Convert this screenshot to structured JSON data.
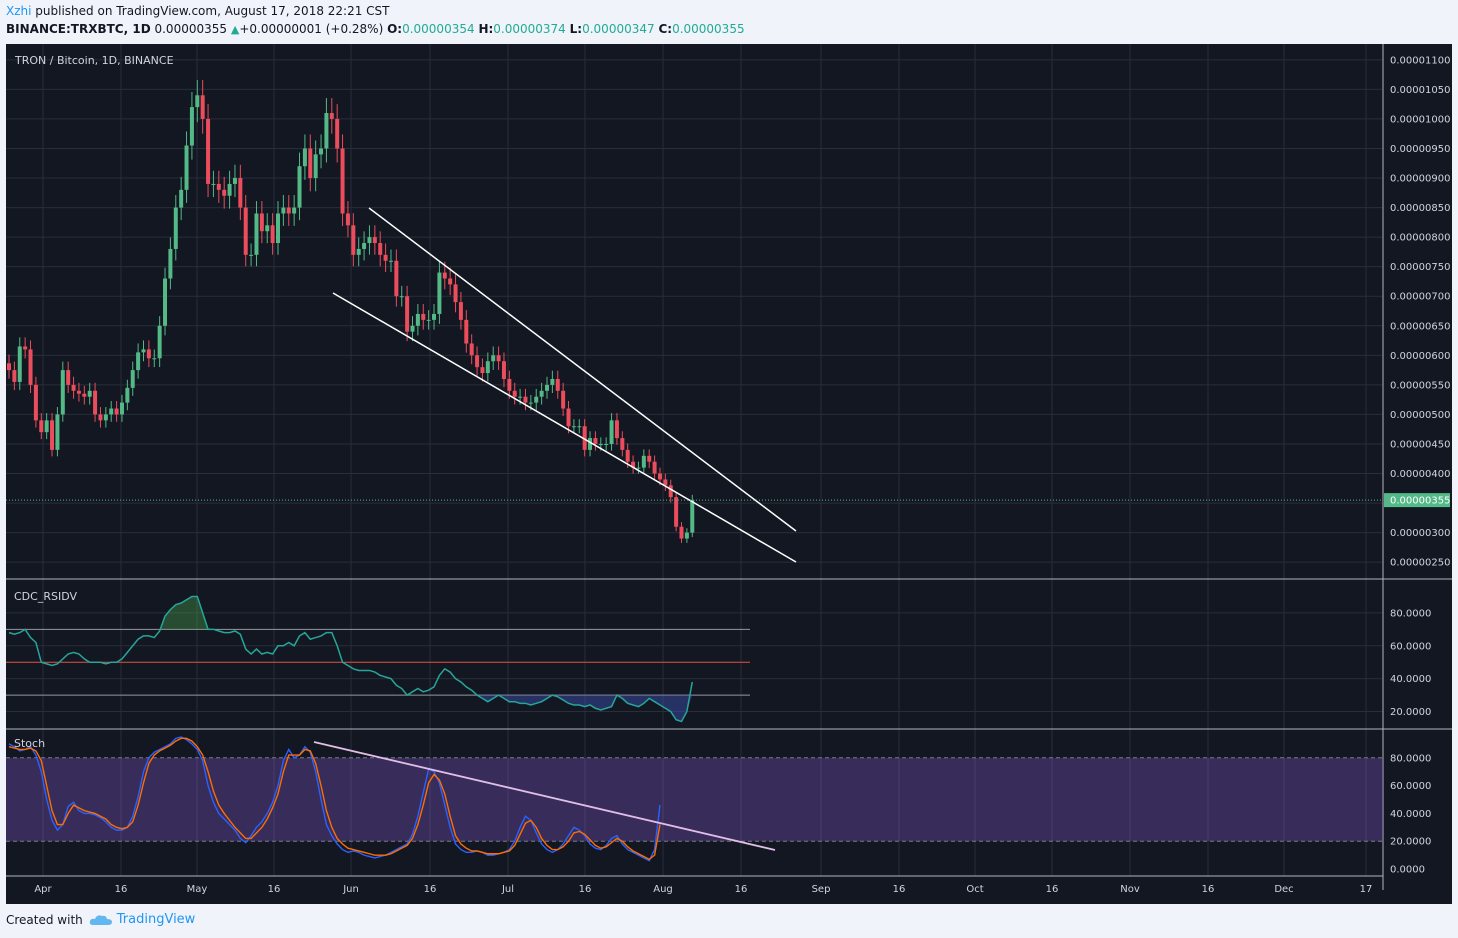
{
  "header": {
    "author": "Xzhi",
    "published_text": "published on TradingView.com, August 17, 2018 22:21 CST",
    "symbol_line": "BINANCE:TRXBTC, 1D",
    "last_price": "0.00000355",
    "change": "+0.00000001 (+0.28%)",
    "o_label": "O:",
    "o_value": "0.00000354",
    "h_label": "H:",
    "h_value": "0.00000374",
    "l_label": "L:",
    "l_value": "0.00000347",
    "c_label": "C:",
    "c_value": "0.00000355"
  },
  "footer": {
    "created_with": "Created with",
    "brand": "TradingView"
  },
  "colors": {
    "background": "#131722",
    "up": "#53b987",
    "down": "#eb4d5c",
    "grid": "#2a2e39",
    "channel": "#ffffff"
  },
  "chart_data": [
    {
      "type": "candlestick",
      "title": "TRON / Bitcoin, 1D, BINANCE",
      "last_price_label": "0.00000355",
      "y_ticks": [
        "0.00000250",
        "0.00000300",
        "0.00000350",
        "0.00000400",
        "0.00000450",
        "0.00000500",
        "0.00000550",
        "0.00000600",
        "0.00000650",
        "0.00000700",
        "0.00000750",
        "0.00000800",
        "0.00000850",
        "0.00000900",
        "0.00000950",
        "0.00001000",
        "0.00001050",
        "0.00001100"
      ],
      "ylim": [
        2.3e-06,
        1.12e-05
      ],
      "x_ticks": [
        "Apr",
        "16",
        "May",
        "16",
        "Jun",
        "16",
        "Jul",
        "16",
        "Aug",
        "16",
        "Sep",
        "16",
        "Oct",
        "16",
        "Nov",
        "16",
        "Dec",
        "17"
      ],
      "closes": [
        5.75e-06,
        5.55e-06,
        6.15e-06,
        6.1e-06,
        5.5e-06,
        4.9e-06,
        4.7e-06,
        4.9e-06,
        4.4e-06,
        5e-06,
        5.75e-06,
        5.5e-06,
        5.4e-06,
        5.35e-06,
        5.3e-06,
        5.4e-06,
        5e-06,
        4.9e-06,
        5e-06,
        5.1e-06,
        5e-06,
        5.2e-06,
        5.45e-06,
        5.75e-06,
        6.05e-06,
        6.1e-06,
        5.95e-06,
        5.95e-06,
        6.5e-06,
        7.3e-06,
        7.8e-06,
        8.5e-06,
        8.8e-06,
        9.55e-06,
        1.02e-05,
        1.04e-05,
        1e-05,
        8.9e-06,
        8.9e-06,
        8.8e-06,
        8.7e-06,
        8.9e-06,
        9e-06,
        8.5e-06,
        7.7e-06,
        7.7e-06,
        8.4e-06,
        8.1e-06,
        8.2e-06,
        7.9e-06,
        8.4e-06,
        8.5e-06,
        8.4e-06,
        8.5e-06,
        9.2e-06,
        9.5e-06,
        9e-06,
        9.4e-06,
        9.5e-06,
        1.01e-05,
        1e-05,
        9.5e-06,
        8.4e-06,
        8.2e-06,
        7.7e-06,
        7.8e-06,
        7.9e-06,
        8e-06,
        7.9e-06,
        7.7e-06,
        7.6e-06,
        7.6e-06,
        7e-06,
        7e-06,
        6.4e-06,
        6.5e-06,
        6.7e-06,
        6.6e-06,
        6.6e-06,
        6.7e-06,
        7.4e-06,
        7.3e-06,
        7.2e-06,
        6.9e-06,
        6.6e-06,
        6.2e-06,
        6e-06,
        5.8e-06,
        5.7e-06,
        5.9e-06,
        6e-06,
        5.9e-06,
        5.6e-06,
        5.4e-06,
        5.3e-06,
        5.3e-06,
        5.2e-06,
        5.2e-06,
        5.3e-06,
        5.4e-06,
        5.5e-06,
        5.6e-06,
        5.4e-06,
        5.1e-06,
        4.8e-06,
        4.8e-06,
        4.8e-06,
        4.4e-06,
        4.6e-06,
        4.5e-06,
        4.5e-06,
        4.5e-06,
        4.9e-06,
        4.6e-06,
        4.4e-06,
        4.2e-06,
        4.1e-06,
        4.1e-06,
        4.3e-06,
        4.2e-06,
        4e-06,
        3.9e-06,
        3.8e-06,
        3.6e-06,
        3.1e-06,
        2.9e-06,
        3e-06,
        3.55e-06
      ]
    },
    {
      "type": "line",
      "title": "CDC_RSIDV",
      "y_ticks": [
        "20.0000",
        "40.0000",
        "60.0000",
        "80.0000"
      ],
      "ylim": [
        10,
        100
      ],
      "reference_lines": [
        70,
        50,
        30
      ],
      "values": [
        68,
        67,
        68,
        70,
        65,
        62,
        50,
        49,
        48,
        49,
        52,
        55,
        56,
        55,
        52,
        50,
        50,
        50,
        49,
        50,
        50,
        52,
        56,
        60,
        64,
        66,
        66,
        65,
        69,
        78,
        82,
        85,
        86,
        88,
        90,
        90,
        80,
        70,
        70,
        69,
        68,
        68,
        69,
        67,
        58,
        55,
        58,
        55,
        56,
        55,
        60,
        60,
        62,
        60,
        66,
        68,
        64,
        65,
        66,
        68,
        68,
        60,
        50,
        48,
        46,
        45,
        45,
        45,
        44,
        42,
        41,
        40,
        36,
        34,
        30,
        32,
        34,
        32,
        33,
        35,
        42,
        46,
        44,
        40,
        38,
        35,
        33,
        30,
        28,
        26,
        28,
        30,
        28,
        26,
        26,
        25,
        25,
        24,
        25,
        26,
        28,
        30,
        29,
        27,
        25,
        24,
        24,
        23,
        24,
        22,
        21,
        22,
        23,
        30,
        28,
        25,
        24,
        23,
        25,
        28,
        26,
        24,
        22,
        20,
        15,
        14,
        20,
        38
      ]
    },
    {
      "type": "line",
      "title": "Stoch",
      "y_ticks": [
        "0.0000",
        "20.0000",
        "40.0000",
        "60.0000",
        "80.0000"
      ],
      "ylim": [
        -5,
        100
      ],
      "band": [
        20,
        80
      ],
      "series": [
        {
          "color": "#2962ff",
          "values": [
            90,
            88,
            85,
            86,
            88,
            82,
            70,
            50,
            35,
            28,
            32,
            45,
            48,
            42,
            40,
            40,
            39,
            37,
            34,
            30,
            28,
            28,
            30,
            38,
            52,
            70,
            80,
            84,
            86,
            88,
            90,
            94,
            95,
            93,
            90,
            86,
            78,
            60,
            48,
            40,
            36,
            32,
            28,
            22,
            19,
            24,
            30,
            34,
            40,
            48,
            60,
            78,
            86,
            80,
            82,
            88,
            84,
            70,
            50,
            32,
            24,
            18,
            14,
            12,
            13,
            12,
            10,
            9,
            8,
            9,
            10,
            12,
            14,
            16,
            18,
            25,
            38,
            55,
            72,
            70,
            62,
            46,
            30,
            18,
            14,
            12,
            12,
            13,
            12,
            10,
            10,
            11,
            12,
            14,
            20,
            30,
            38,
            35,
            26,
            18,
            14,
            12,
            14,
            18,
            24,
            30,
            28,
            24,
            18,
            15,
            14,
            17,
            22,
            24,
            18,
            14,
            12,
            10,
            8,
            6,
            14,
            46
          ]
        },
        {
          "color": "#ff6d00",
          "values": [
            88,
            87,
            86,
            86,
            87,
            85,
            78,
            60,
            42,
            32,
            32,
            40,
            46,
            44,
            42,
            41,
            40,
            38,
            36,
            32,
            30,
            29,
            30,
            34,
            46,
            62,
            76,
            82,
            85,
            87,
            89,
            92,
            94,
            94,
            92,
            88,
            82,
            70,
            56,
            46,
            40,
            35,
            30,
            26,
            22,
            22,
            26,
            30,
            36,
            44,
            54,
            70,
            82,
            82,
            82,
            86,
            85,
            76,
            60,
            42,
            30,
            22,
            18,
            15,
            14,
            13,
            12,
            11,
            10,
            10,
            10,
            11,
            13,
            15,
            17,
            22,
            32,
            46,
            62,
            68,
            64,
            54,
            38,
            24,
            18,
            15,
            13,
            13,
            12,
            11,
            11,
            11,
            12,
            13,
            17,
            25,
            33,
            35,
            30,
            22,
            17,
            14,
            14,
            16,
            20,
            26,
            27,
            25,
            21,
            17,
            15,
            16,
            19,
            22,
            20,
            16,
            13,
            11,
            9,
            7,
            10,
            32
          ]
        }
      ]
    }
  ]
}
